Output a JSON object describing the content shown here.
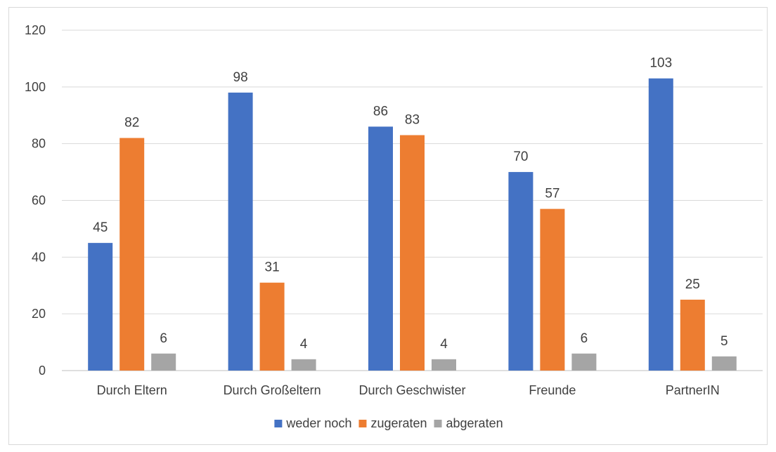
{
  "chart_data": {
    "type": "bar",
    "title": "",
    "xlabel": "",
    "ylabel": "",
    "categories": [
      "Durch Eltern",
      "Durch Großeltern",
      "Durch Geschwister",
      "Freunde",
      "PartnerIN"
    ],
    "series": [
      {
        "name": "weder noch",
        "color": "#4472C4",
        "values": [
          45,
          98,
          86,
          70,
          103
        ]
      },
      {
        "name": "zugeraten",
        "color": "#ED7D31",
        "values": [
          82,
          31,
          83,
          57,
          25
        ]
      },
      {
        "name": "abgeraten",
        "color": "#A5A5A5",
        "values": [
          6,
          4,
          4,
          6,
          5
        ]
      }
    ],
    "ylim": [
      0,
      120
    ],
    "yticks": [
      0,
      20,
      40,
      60,
      80,
      100,
      120
    ],
    "grid": true,
    "legend_position": "bottom",
    "data_labels": true
  }
}
